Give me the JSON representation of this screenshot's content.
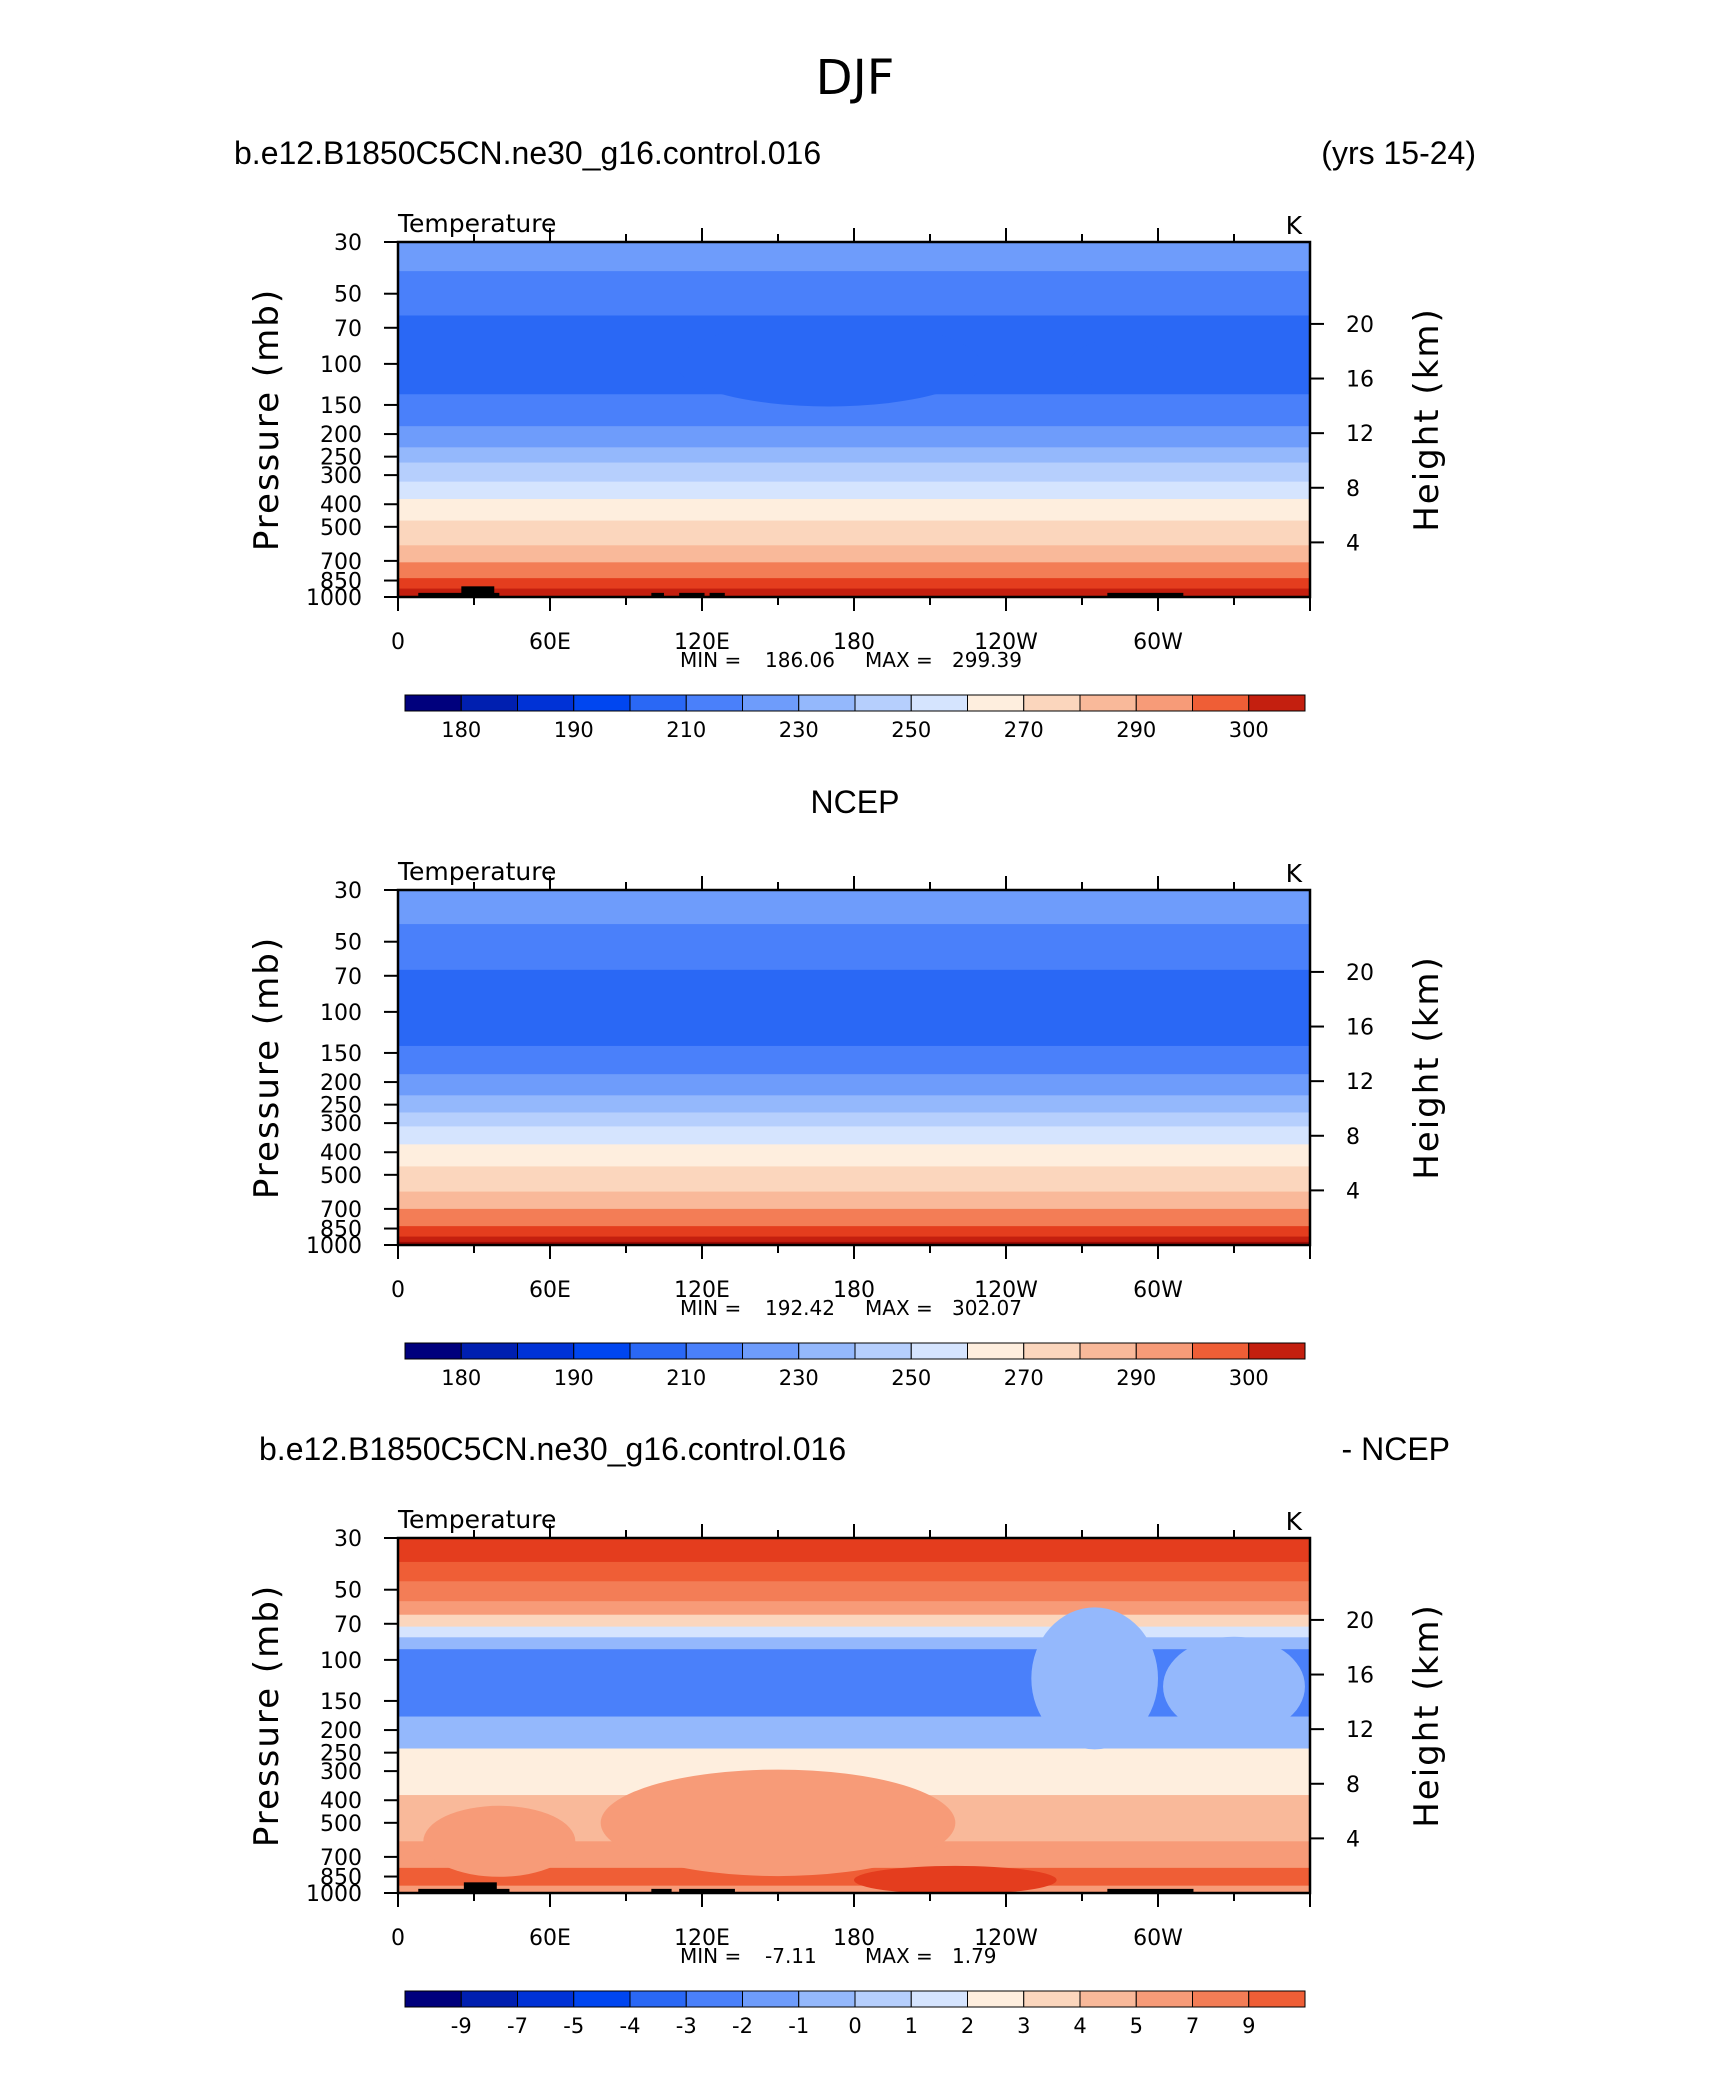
{
  "figure": {
    "title": "DJF",
    "case_name": "b.e12.B1850C5CN.ne30_g16.control.016",
    "years": "(yrs 15-24)",
    "obs_title": "NCEP",
    "diff_case": "b.e12.B1850C5CN.ne30_g16.control.016",
    "diff_suffix": "- NCEP"
  },
  "colors": {
    "abs_palette": [
      "#00007d",
      "#001fb0",
      "#0032d6",
      "#0046f0",
      "#2a68f5",
      "#4a80fa",
      "#6e9cfb",
      "#94b8fc",
      "#b6cffd",
      "#d5e4fe",
      "#feeede",
      "#fbd6bd",
      "#f9b99a",
      "#f79b78",
      "#f37d56",
      "#ef5e36",
      "#e43d1e",
      "#c41f0f",
      "#9d0b05",
      "#7d0000"
    ],
    "diff_palette": [
      "#00007d",
      "#001fb0",
      "#0032d6",
      "#0046f0",
      "#2a68f5",
      "#4a80fa",
      "#6e9cfb",
      "#94b8fc",
      "#b6cffd",
      "#d5e4fe",
      "#feeede",
      "#fbd6bd",
      "#f9b99a",
      "#f79b78",
      "#f37d56",
      "#ef5e36",
      "#e43d1e",
      "#c41f0f",
      "#9d0b05",
      "#7d0000"
    ],
    "topography": "#000000"
  },
  "chart_data": [
    {
      "type": "heatmap",
      "panel": "model",
      "label_left": "Temperature",
      "label_right": "K",
      "xlabel": "",
      "ylabel": "Pressure (mb)",
      "y2label": "Height (km)",
      "x_ticks": [
        "0",
        "60E",
        "120E",
        "180",
        "120W",
        "60W"
      ],
      "x_tick_lon": [
        0,
        60,
        120,
        180,
        240,
        300
      ],
      "xlim": [
        0,
        360
      ],
      "y_log": true,
      "ylim": [
        1000,
        30
      ],
      "y_ticks": [
        "30",
        "50",
        "70",
        "100",
        "150",
        "200",
        "250",
        "300",
        "400",
        "500",
        "700",
        "850",
        "1000"
      ],
      "y_tick_values": [
        30,
        50,
        70,
        100,
        150,
        200,
        250,
        300,
        400,
        500,
        700,
        850,
        1000
      ],
      "y2_ticks": [
        "4",
        "8",
        "12",
        "16",
        "20"
      ],
      "y2_tick_values": [
        4,
        8,
        12,
        16,
        20
      ],
      "stats": {
        "min_label": "MIN =",
        "min": "186.06",
        "max_label": "MAX =",
        "max": "299.39"
      },
      "colorbar_labels": [
        "180",
        "190",
        "210",
        "230",
        "250",
        "270",
        "290",
        "300"
      ],
      "levels": [
        175,
        180,
        185,
        190,
        200,
        210,
        220,
        230,
        240,
        250,
        260,
        265,
        270,
        275,
        280,
        285,
        290,
        295,
        300
      ],
      "bands": [
        {
          "p_top": 30,
          "p_bot": 40,
          "value": 213
        },
        {
          "p_top": 40,
          "p_bot": 62,
          "value": 203
        },
        {
          "p_top": 62,
          "p_bot": 135,
          "value": 197
        },
        {
          "p_top": 135,
          "p_bot": 185,
          "value": 203
        },
        {
          "p_top": 185,
          "p_bot": 228,
          "value": 213
        },
        {
          "p_top": 228,
          "p_bot": 265,
          "value": 223
        },
        {
          "p_top": 265,
          "p_bot": 320,
          "value": 233
        },
        {
          "p_top": 320,
          "p_bot": 380,
          "value": 243
        },
        {
          "p_top": 380,
          "p_bot": 470,
          "value": 256
        },
        {
          "p_top": 470,
          "p_bot": 600,
          "value": 262
        },
        {
          "p_top": 600,
          "p_bot": 710,
          "value": 268
        },
        {
          "p_top": 710,
          "p_bot": 830,
          "value": 278
        },
        {
          "p_top": 830,
          "p_bot": 920,
          "value": 287
        },
        {
          "p_top": 920,
          "p_bot": 1000,
          "value": 292
        }
      ],
      "blobs": [
        {
          "lon_center": 170,
          "lon_half": 60,
          "p": 100,
          "thick": 0.12,
          "value": 190
        },
        {
          "lon_center": 285,
          "lon_half": 20,
          "p": 100,
          "thick": 0.07,
          "value": 190
        },
        {
          "lon_center": 35,
          "lon_half": 60,
          "p": 100,
          "thick": 0.015,
          "value": 190
        }
      ],
      "topography": [
        {
          "lon0": 8,
          "lon1": 40,
          "p": 960
        },
        {
          "lon0": 25,
          "lon1": 38,
          "p": 900
        },
        {
          "lon0": 100,
          "lon1": 105,
          "p": 960
        },
        {
          "lon0": 111,
          "lon1": 121,
          "p": 960
        },
        {
          "lon0": 123,
          "lon1": 129,
          "p": 960
        },
        {
          "lon0": 280,
          "lon1": 310,
          "p": 960
        }
      ]
    },
    {
      "type": "heatmap",
      "panel": "obs",
      "label_left": "Temperature",
      "label_right": "K",
      "xlabel": "",
      "ylabel": "Pressure (mb)",
      "y2label": "Height (km)",
      "x_ticks": [
        "0",
        "60E",
        "120E",
        "180",
        "120W",
        "60W"
      ],
      "x_tick_lon": [
        0,
        60,
        120,
        180,
        240,
        300
      ],
      "xlim": [
        0,
        360
      ],
      "y_log": true,
      "ylim": [
        1000,
        30
      ],
      "y_ticks": [
        "30",
        "50",
        "70",
        "100",
        "150",
        "200",
        "250",
        "300",
        "400",
        "500",
        "700",
        "850",
        "1000"
      ],
      "y_tick_values": [
        30,
        50,
        70,
        100,
        150,
        200,
        250,
        300,
        400,
        500,
        700,
        850,
        1000
      ],
      "y2_ticks": [
        "4",
        "8",
        "12",
        "16",
        "20"
      ],
      "y2_tick_values": [
        4,
        8,
        12,
        16,
        20
      ],
      "stats": {
        "min_label": "MIN =",
        "min": "192.42",
        "max_label": "MAX =",
        "max": "302.07"
      },
      "colorbar_labels": [
        "180",
        "190",
        "210",
        "230",
        "250",
        "270",
        "290",
        "300"
      ],
      "levels": [
        175,
        180,
        185,
        190,
        200,
        210,
        220,
        230,
        240,
        250,
        260,
        265,
        270,
        275,
        280,
        285,
        290,
        295,
        300
      ],
      "bands": [
        {
          "p_top": 30,
          "p_bot": 42,
          "value": 213
        },
        {
          "p_top": 42,
          "p_bot": 66,
          "value": 203
        },
        {
          "p_top": 66,
          "p_bot": 140,
          "value": 197
        },
        {
          "p_top": 140,
          "p_bot": 185,
          "value": 203
        },
        {
          "p_top": 185,
          "p_bot": 228,
          "value": 213
        },
        {
          "p_top": 228,
          "p_bot": 270,
          "value": 223
        },
        {
          "p_top": 270,
          "p_bot": 310,
          "value": 233
        },
        {
          "p_top": 310,
          "p_bot": 370,
          "value": 243
        },
        {
          "p_top": 370,
          "p_bot": 460,
          "value": 256
        },
        {
          "p_top": 460,
          "p_bot": 590,
          "value": 262
        },
        {
          "p_top": 590,
          "p_bot": 700,
          "value": 268
        },
        {
          "p_top": 700,
          "p_bot": 830,
          "value": 278
        },
        {
          "p_top": 830,
          "p_bot": 920,
          "value": 287
        },
        {
          "p_top": 920,
          "p_bot": 970,
          "value": 292
        },
        {
          "p_top": 970,
          "p_bot": 1000,
          "value": 296
        }
      ],
      "blobs": [],
      "topography": []
    },
    {
      "type": "heatmap",
      "panel": "difference",
      "label_left": "Temperature",
      "label_right": "K",
      "xlabel": "",
      "ylabel": "Pressure (mb)",
      "y2label": "Height (km)",
      "x_ticks": [
        "0",
        "60E",
        "120E",
        "180",
        "120W",
        "60W"
      ],
      "x_tick_lon": [
        0,
        60,
        120,
        180,
        240,
        300
      ],
      "xlim": [
        0,
        360
      ],
      "y_log": true,
      "ylim": [
        1000,
        30
      ],
      "y_ticks": [
        "30",
        "50",
        "70",
        "100",
        "150",
        "200",
        "250",
        "300",
        "400",
        "500",
        "700",
        "850",
        "1000"
      ],
      "y_tick_values": [
        30,
        50,
        70,
        100,
        150,
        200,
        250,
        300,
        400,
        500,
        700,
        850,
        1000
      ],
      "y2_ticks": [
        "4",
        "8",
        "12",
        "16",
        "20"
      ],
      "y2_tick_values": [
        4,
        8,
        12,
        16,
        20
      ],
      "stats": {
        "min_label": "MIN =",
        "min": "-7.11",
        "max_label": "MAX =",
        "max": "1.79"
      },
      "colorbar_labels": [
        "-9",
        "-7",
        "-5",
        "-4",
        "-3",
        "-2",
        "-1",
        "0",
        "1",
        "2",
        "3",
        "4",
        "5",
        "7",
        "9"
      ],
      "levels": [
        -10,
        -9,
        -8,
        -7,
        -6,
        -5,
        -4.5,
        -4,
        -3.5,
        -3,
        -2.5,
        -2,
        -1.5,
        -1,
        -0.5,
        0,
        0.5,
        1,
        1.5,
        2
      ],
      "bands": [
        {
          "p_top": 30,
          "p_bot": 38,
          "value": 0.3
        },
        {
          "p_top": 38,
          "p_bot": 46,
          "value": -0.3
        },
        {
          "p_top": 46,
          "p_bot": 56,
          "value": -0.8
        },
        {
          "p_top": 56,
          "p_bot": 64,
          "value": -1.3
        },
        {
          "p_top": 64,
          "p_bot": 72,
          "value": -2.2
        },
        {
          "p_top": 72,
          "p_bot": 80,
          "value": -3.3
        },
        {
          "p_top": 80,
          "p_bot": 90,
          "value": -4.3
        },
        {
          "p_top": 90,
          "p_bot": 175,
          "value": -5.8
        },
        {
          "p_top": 175,
          "p_bot": 240,
          "value": -4.3
        },
        {
          "p_top": 240,
          "p_bot": 380,
          "value": -2.7
        },
        {
          "p_top": 380,
          "p_bot": 600,
          "value": -1.8
        },
        {
          "p_top": 600,
          "p_bot": 780,
          "value": -1.2
        },
        {
          "p_top": 780,
          "p_bot": 930,
          "value": -0.3
        },
        {
          "p_top": 930,
          "p_bot": 1000,
          "value": -1.3
        }
      ],
      "blobs": [
        {
          "lon_center": 150,
          "lon_half": 70,
          "p": 500,
          "thick": 0.15,
          "value": -1.2
        },
        {
          "lon_center": 40,
          "lon_half": 30,
          "p": 600,
          "thick": 0.1,
          "value": -1.2
        },
        {
          "lon_center": 275,
          "lon_half": 25,
          "p": 120,
          "thick": 0.2,
          "value": -4.3
        },
        {
          "lon_center": 330,
          "lon_half": 28,
          "p": 130,
          "thick": 0.14,
          "value": -4.3
        },
        {
          "lon_center": 220,
          "lon_half": 40,
          "p": 880,
          "thick": 0.04,
          "value": 0.3
        }
      ],
      "topography": [
        {
          "lon0": 8,
          "lon1": 44,
          "p": 960
        },
        {
          "lon0": 26,
          "lon1": 39,
          "p": 900
        },
        {
          "lon0": 100,
          "lon1": 108,
          "p": 960
        },
        {
          "lon0": 111,
          "lon1": 133,
          "p": 960
        },
        {
          "lon0": 280,
          "lon1": 314,
          "p": 960
        }
      ]
    }
  ]
}
